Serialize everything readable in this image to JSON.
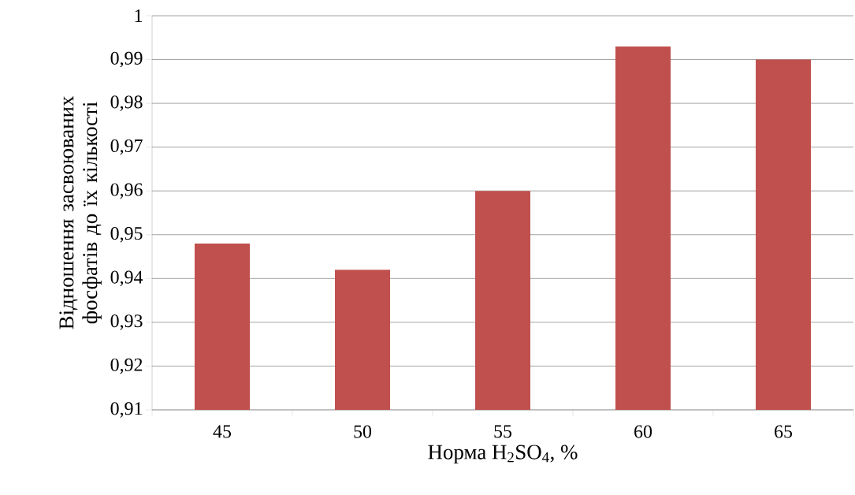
{
  "chart_data": {
    "type": "bar",
    "xlabel": "Норма H$_{2}$SO$_{4}$, %",
    "ylabel": "Відношення засвоюваних фосфатів до їх кількості",
    "categories": [
      "45",
      "50",
      "55",
      "60",
      "65"
    ],
    "values": [
      0.948,
      0.942,
      0.96,
      0.993,
      0.99
    ],
    "color": "#c0504d",
    "ylim": [
      0.91,
      1.0
    ],
    "yticks": [
      {
        "value": 0.91,
        "label": "0,91"
      },
      {
        "value": 0.92,
        "label": "0,92"
      },
      {
        "value": 0.93,
        "label": "0,93"
      },
      {
        "value": 0.94,
        "label": "0,94"
      },
      {
        "value": 0.95,
        "label": "0,95"
      },
      {
        "value": 0.96,
        "label": "0,96"
      },
      {
        "value": 0.97,
        "label": "0,97"
      },
      {
        "value": 0.98,
        "label": "0,98"
      },
      {
        "value": 0.99,
        "label": "0,99"
      },
      {
        "value": 1.0,
        "label": "1"
      }
    ],
    "grid": "y"
  }
}
